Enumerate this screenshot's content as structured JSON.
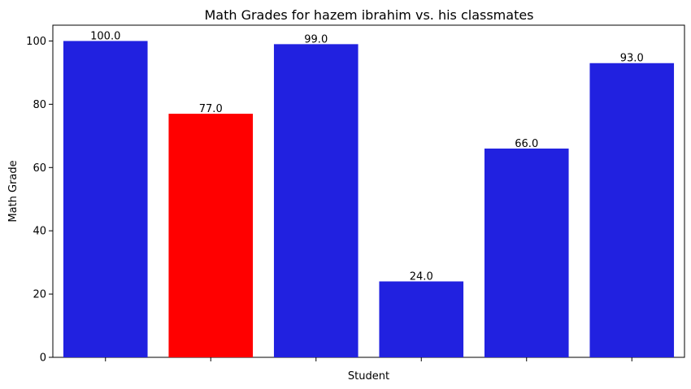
{
  "chart_data": {
    "type": "bar",
    "title": "Math Grades for hazem ibrahim vs. his classmates",
    "xlabel": "Student",
    "ylabel": "Math Grade",
    "categories": [
      "",
      "",
      "",
      "",
      "",
      ""
    ],
    "values": [
      100.0,
      77.0,
      99.0,
      24.0,
      66.0,
      93.0
    ],
    "value_labels": [
      "100.0",
      "77.0",
      "99.0",
      "24.0",
      "66.0",
      "93.0"
    ],
    "bar_colors": [
      "#2121e0",
      "#ff0000",
      "#2121e0",
      "#2121e0",
      "#2121e0",
      "#2121e0"
    ],
    "ylim": [
      0,
      105
    ],
    "yticks": [
      0,
      20,
      40,
      60,
      80,
      100
    ],
    "ytick_labels": [
      "0",
      "20",
      "40",
      "60",
      "80",
      "100"
    ],
    "grid": false,
    "legend": "none"
  }
}
